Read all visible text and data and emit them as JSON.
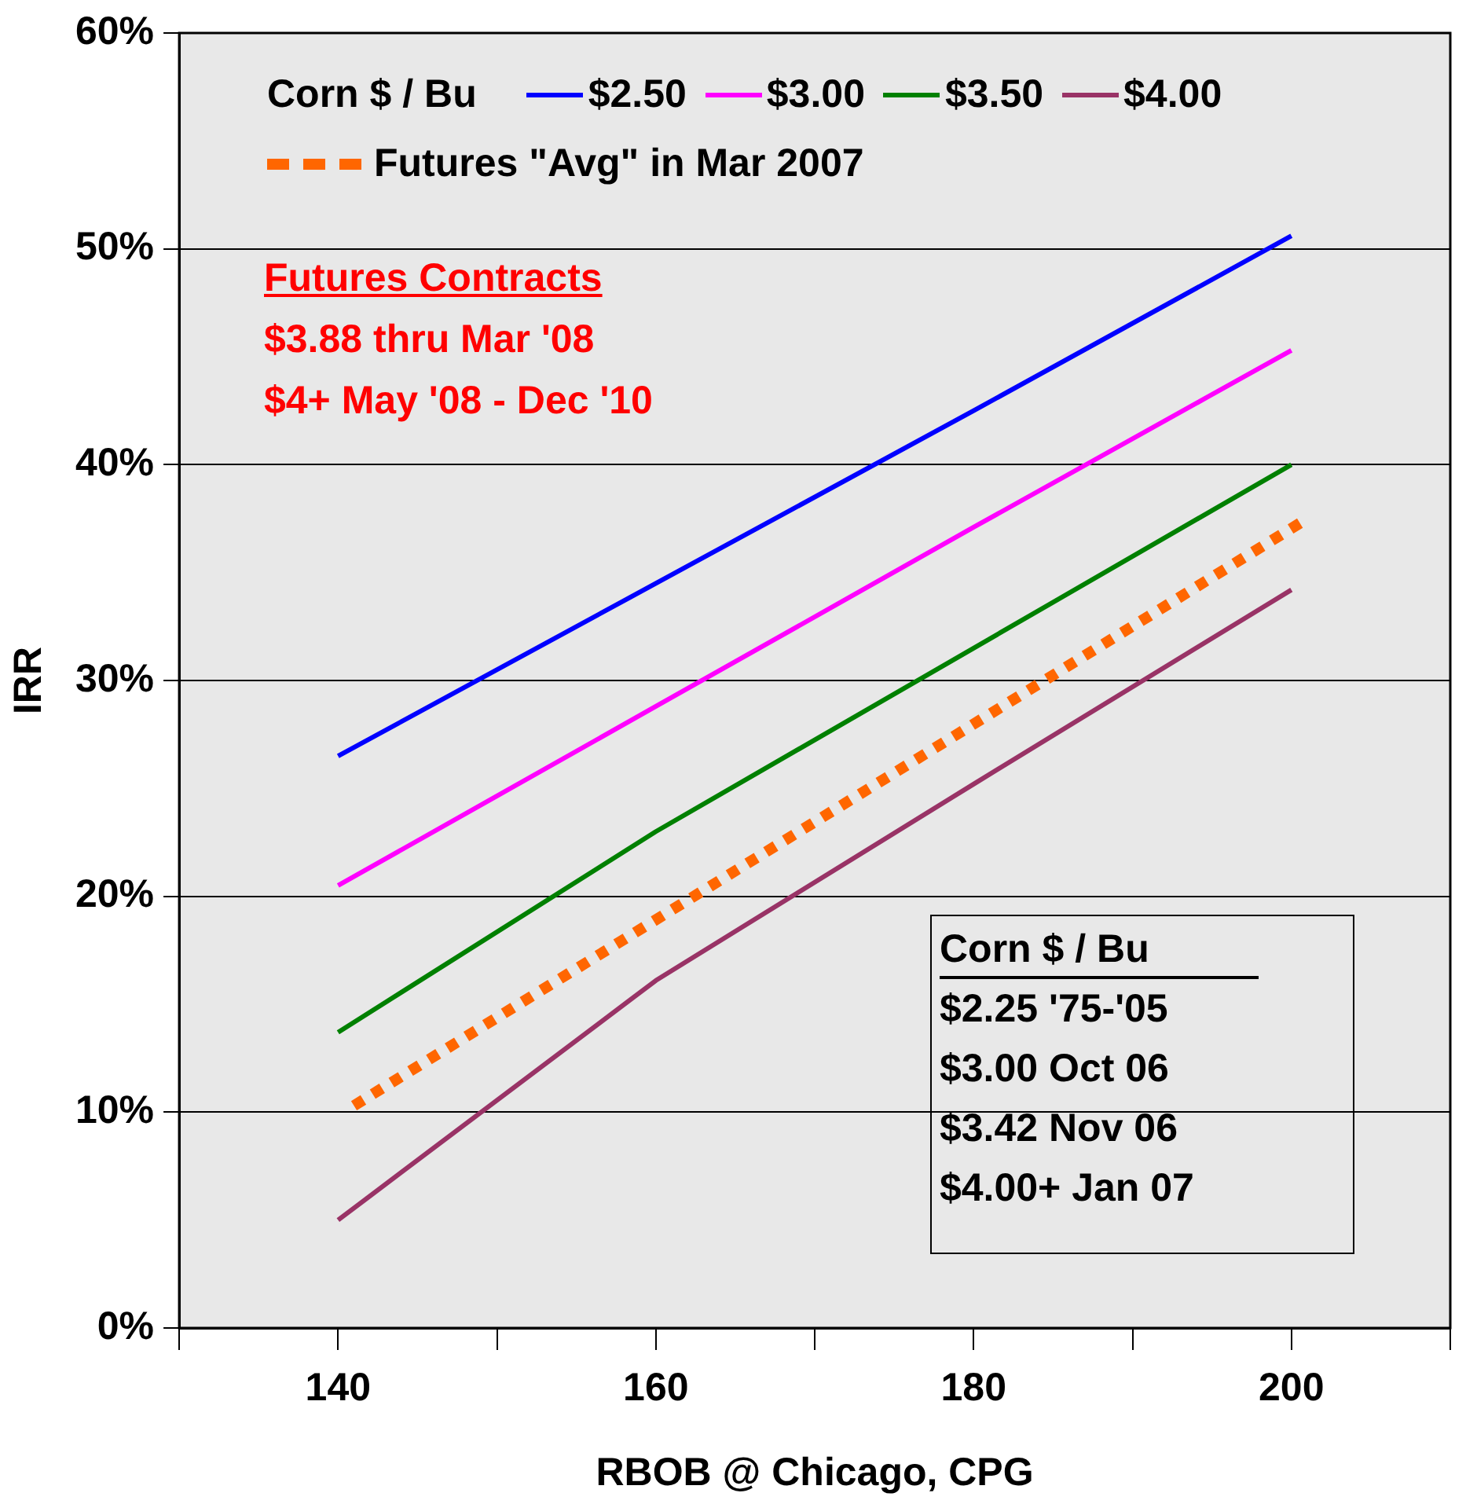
{
  "chart_data": {
    "type": "line",
    "xlabel": "RBOB @ Chicago, CPG",
    "ylabel": "IRR",
    "legend_title": "Corn $ / Bu",
    "legend": "top",
    "grid": "y",
    "marker": "none",
    "xlim": [
      130,
      210
    ],
    "xticks": [
      {
        "value": 130,
        "label": null
      },
      140,
      {
        "value": 150,
        "label": null
      },
      160,
      {
        "value": 170,
        "label": null
      },
      180,
      {
        "value": 190,
        "label": null
      },
      200,
      {
        "value": 210,
        "label": null
      }
    ],
    "ylim": [
      0,
      60
    ],
    "yticks": [
      {
        "value": 0,
        "label": "0%"
      },
      {
        "value": 10,
        "label": "10%"
      },
      {
        "value": 20,
        "label": "20%"
      },
      {
        "value": 30,
        "label": "30%"
      },
      {
        "value": 40,
        "label": "40%"
      },
      {
        "value": 50,
        "label": "50%"
      },
      {
        "value": 60,
        "label": "60%"
      }
    ],
    "series": [
      {
        "name": "$2.50",
        "color": "#0000ff",
        "x": [
          140,
          160,
          180,
          200
        ],
        "values": [
          26.5,
          34.5,
          42.5,
          50.6
        ]
      },
      {
        "name": "$3.00",
        "color": "#ff00ff",
        "x": [
          140,
          160,
          180,
          200
        ],
        "values": [
          20.5,
          28.8,
          37.1,
          45.3
        ]
      },
      {
        "name": "$3.50",
        "color": "#008000",
        "x": [
          140,
          160,
          180,
          200
        ],
        "values": [
          13.7,
          23.0,
          31.5,
          40.0
        ]
      },
      {
        "name": "$4.00",
        "color": "#993366",
        "x": [
          140,
          160,
          180,
          200
        ],
        "values": [
          5.0,
          16.1,
          25.2,
          34.2
        ]
      },
      {
        "name": "Futures \"Avg\" in Mar 2007",
        "color": "#ff6600",
        "line_style": "dotted",
        "x": [
          141,
          201
        ],
        "values": [
          10.3,
          37.5
        ]
      }
    ],
    "annotations": [
      "Futures Contracts",
      "$3.88 thru Mar '08",
      "$4+ May '08 - Dec '10",
      "Corn $ / Bu",
      "$2.25 '75-'05",
      "$3.00 Oct 06",
      "$3.42 Nov 06",
      "$4.00+ Jan 07"
    ]
  }
}
